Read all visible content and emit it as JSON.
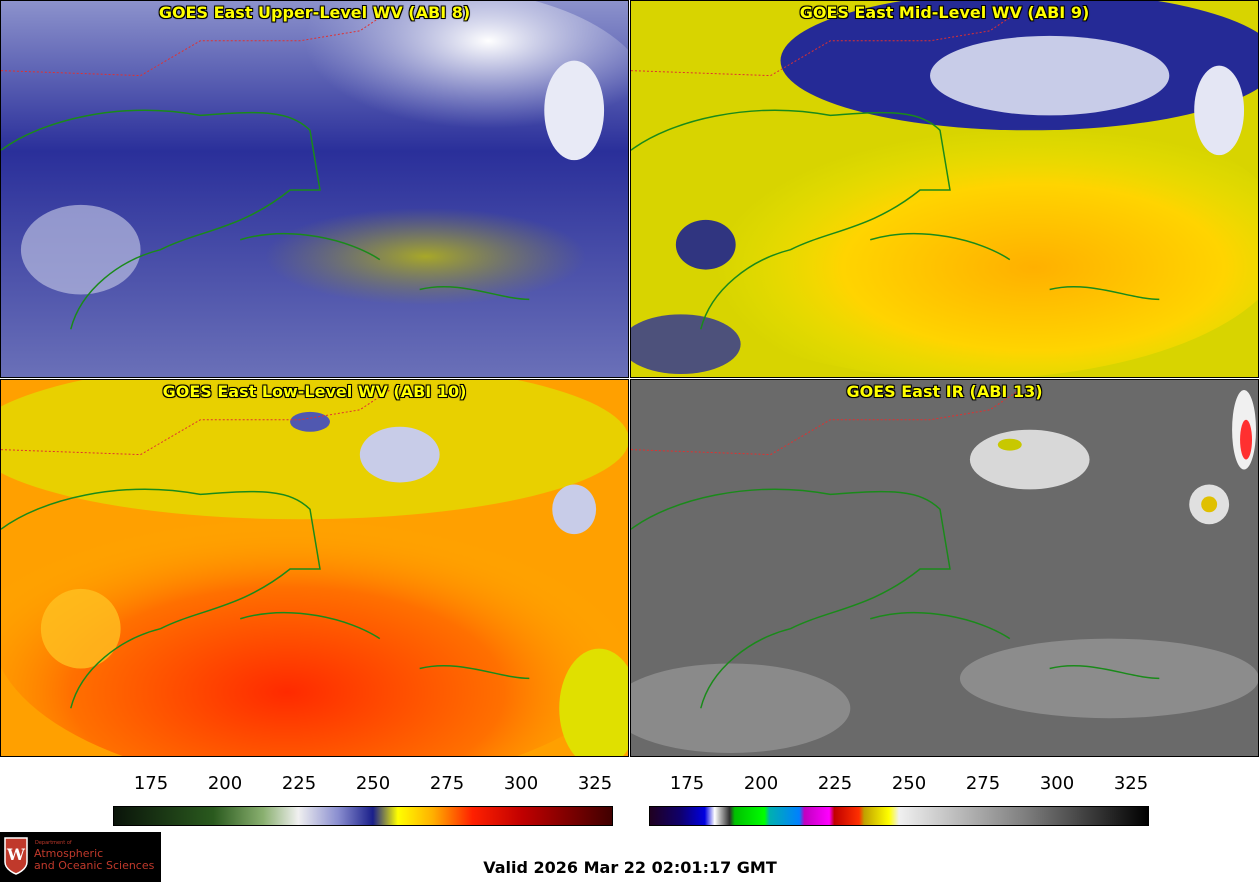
{
  "panels": {
    "upper": {
      "title": "GOES East Upper-Level WV (ABI 8)"
    },
    "mid": {
      "title": "GOES East Mid-Level WV (ABI 9)"
    },
    "low": {
      "title": "GOES East Low-Level WV (ABI 10)"
    },
    "ir": {
      "title": "GOES East IR (ABI 13)"
    }
  },
  "colorbars": {
    "wv": {
      "ticks": [
        "175",
        "200",
        "225",
        "250",
        "275",
        "300",
        "325"
      ]
    },
    "ir": {
      "ticks": [
        "175",
        "200",
        "225",
        "250",
        "275",
        "300",
        "325"
      ]
    }
  },
  "footer": {
    "valid": "Valid 2026 Mar 22 02:01:17 GMT",
    "logo": {
      "line1": "Department of",
      "line2": "Atmospheric",
      "line3": "and Oceanic Sciences"
    }
  },
  "colors": {
    "title": "#ffff00",
    "coastline": "#1a8a1a",
    "state_borders": "#e02020"
  }
}
